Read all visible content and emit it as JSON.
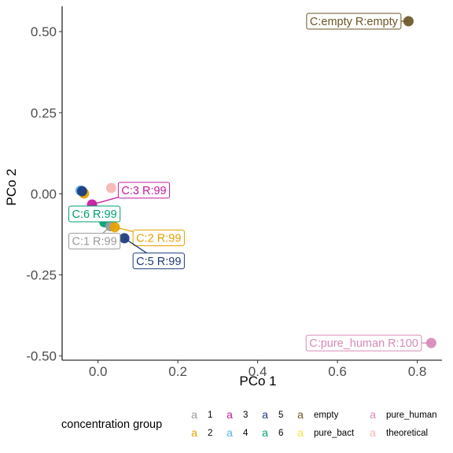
{
  "chart_data": {
    "type": "scatter",
    "xlabel": "PCo 1",
    "ylabel": "PCo 2",
    "xlim": [
      -0.09,
      0.862
    ],
    "ylim": [
      -0.513,
      0.578
    ],
    "x_ticks": [
      {
        "value": 0.0,
        "label": "0.0"
      },
      {
        "value": 0.2,
        "label": "0.2"
      },
      {
        "value": 0.4,
        "label": "0.4"
      },
      {
        "value": 0.6,
        "label": "0.6"
      },
      {
        "value": 0.8,
        "label": "0.8"
      }
    ],
    "y_ticks": [
      {
        "value": 0.5,
        "label": "0.50"
      },
      {
        "value": 0.25,
        "label": "0.25"
      },
      {
        "value": 0.0,
        "label": "0.00"
      },
      {
        "value": -0.25,
        "label": "-0.25"
      },
      {
        "value": -0.5,
        "label": "-0.50"
      }
    ],
    "colors": {
      "1": "#999999",
      "2": "#E69F00",
      "3": "#C4199C",
      "4": "#56B4E9",
      "5": "#1B3A7A",
      "6": "#009E73",
      "empty": "#6B5425",
      "pure_bact": "#F0E442",
      "pure_human": "#D78AB8",
      "theoretical": "#F5B7B1"
    },
    "points": [
      {
        "group": "empty",
        "x": 0.778,
        "y": 0.532
      },
      {
        "group": "pure_human",
        "x": 0.835,
        "y": -0.46
      },
      {
        "group": "theoretical",
        "x": 0.033,
        "y": 0.018
      },
      {
        "group": "3",
        "x": -0.015,
        "y": -0.033
      },
      {
        "group": "2",
        "x": -0.035,
        "y": 0.001
      },
      {
        "group": "4",
        "x": -0.044,
        "y": 0.01
      },
      {
        "group": "5",
        "x": -0.04,
        "y": 0.008
      },
      {
        "group": "6",
        "x": 0.016,
        "y": -0.088
      },
      {
        "group": "1",
        "x": 0.031,
        "y": -0.1
      },
      {
        "group": "2",
        "x": 0.042,
        "y": -0.103
      },
      {
        "group": "5",
        "x": 0.066,
        "y": -0.137
      }
    ],
    "annotations": [
      {
        "group": "empty",
        "text": "C:empty R:empty",
        "x": 0.778,
        "y": 0.532,
        "lx": 0.641,
        "ly": 0.532
      },
      {
        "group": "pure_human",
        "text": "C:pure_human R:100",
        "x": 0.835,
        "y": -0.46,
        "lx": 0.666,
        "ly": -0.46
      },
      {
        "group": "3",
        "text": "C:3 R:99",
        "x": -0.015,
        "y": -0.033,
        "lx": 0.115,
        "ly": 0.011
      },
      {
        "group": "6",
        "text": "C:6 R:99",
        "x": 0.016,
        "y": -0.088,
        "lx": -0.009,
        "ly": -0.062
      },
      {
        "group": "2",
        "text": "C:2 R:99",
        "x": 0.042,
        "y": -0.103,
        "lx": 0.152,
        "ly": -0.136
      },
      {
        "group": "1",
        "text": "C:1 R:99",
        "x": 0.031,
        "y": -0.1,
        "lx": -0.009,
        "ly": -0.146
      },
      {
        "group": "5",
        "text": "C:5 R:99",
        "x": 0.066,
        "y": -0.137,
        "lx": 0.152,
        "ly": -0.207
      }
    ],
    "legend": {
      "title": "concentration group",
      "position": "bottom",
      "glyph": "a",
      "items": [
        {
          "group": "1",
          "label": "1"
        },
        {
          "group": "2",
          "label": "2"
        },
        {
          "group": "3",
          "label": "3"
        },
        {
          "group": "4",
          "label": "4"
        },
        {
          "group": "5",
          "label": "5"
        },
        {
          "group": "6",
          "label": "6"
        },
        {
          "group": "empty",
          "label": "empty"
        },
        {
          "group": "pure_bact",
          "label": "pure_bact"
        },
        {
          "group": "pure_human",
          "label": "pure_human"
        },
        {
          "group": "theoretical",
          "label": "theoretical"
        }
      ]
    }
  }
}
